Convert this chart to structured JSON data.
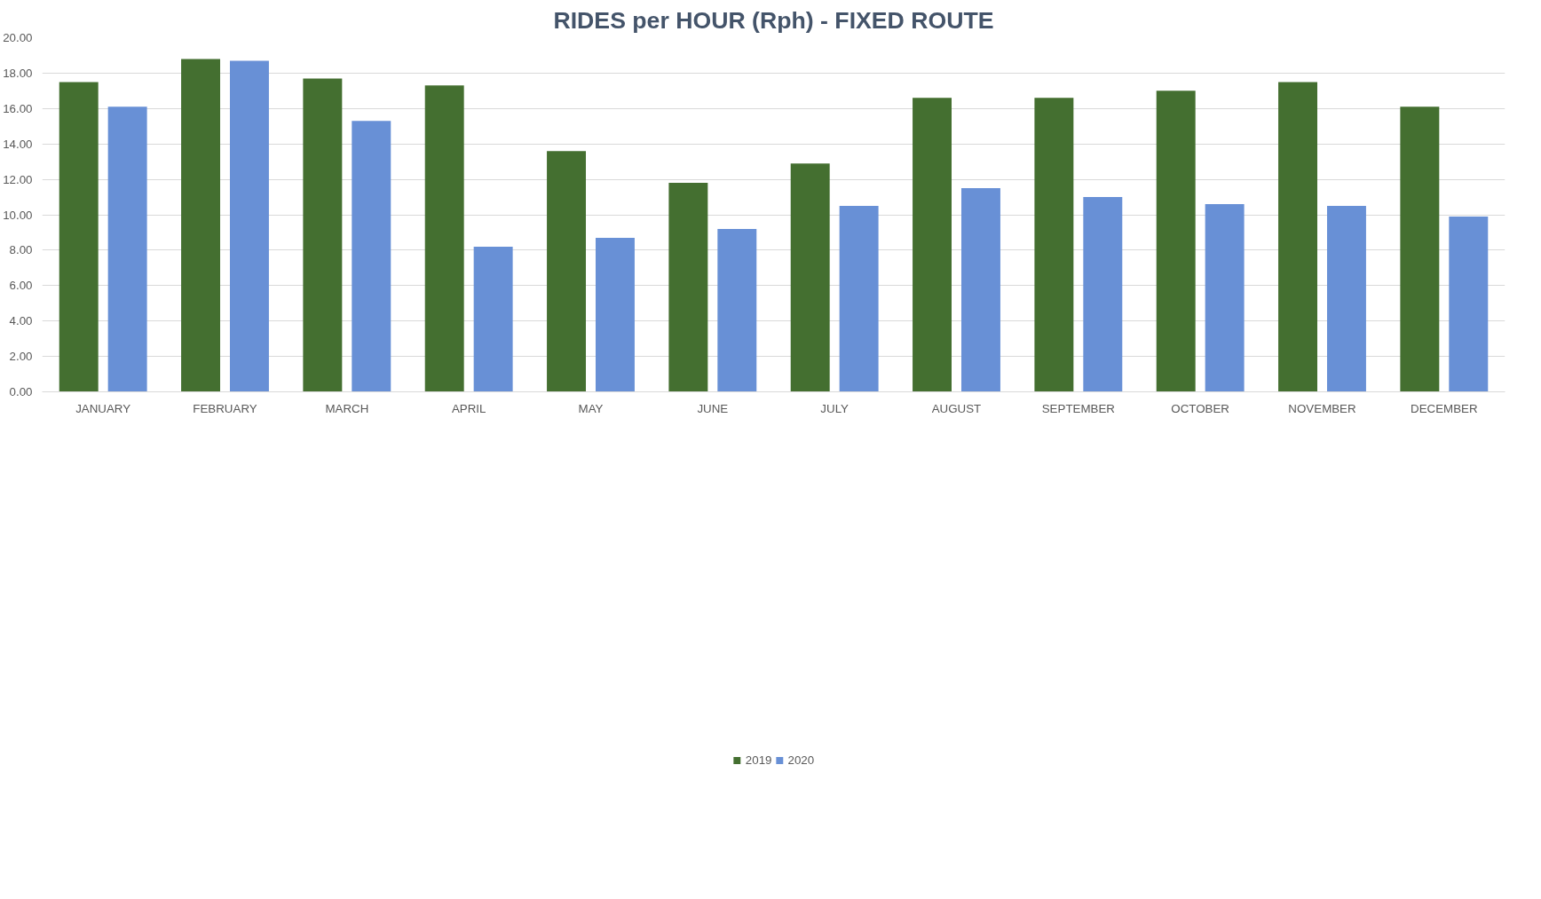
{
  "chart_data": {
    "type": "bar",
    "title": "RIDES per HOUR (Rph) - FIXED ROUTE",
    "categories": [
      "JANUARY",
      "FEBRUARY",
      "MARCH",
      "APRIL",
      "MAY",
      "JUNE",
      "JULY",
      "AUGUST",
      "SEPTEMBER",
      "OCTOBER",
      "NOVEMBER",
      "DECEMBER"
    ],
    "series": [
      {
        "name": "2019",
        "color": "#446f30",
        "values": [
          17.5,
          18.8,
          17.7,
          17.3,
          13.6,
          11.8,
          12.9,
          16.6,
          16.6,
          17.0,
          17.5,
          16.1
        ]
      },
      {
        "name": "2020",
        "color": "#6890d6",
        "values": [
          16.1,
          18.7,
          15.3,
          8.2,
          8.7,
          9.2,
          10.5,
          11.5,
          11.0,
          10.6,
          10.5,
          9.9
        ]
      }
    ],
    "ylim": [
      0,
      20
    ],
    "yticks": [
      {
        "value": 0,
        "label": "0.00"
      },
      {
        "value": 2,
        "label": "2.00"
      },
      {
        "value": 4,
        "label": "4.00"
      },
      {
        "value": 6,
        "label": "6.00"
      },
      {
        "value": 8,
        "label": "8.00"
      },
      {
        "value": 10,
        "label": "10.00"
      },
      {
        "value": 12,
        "label": "12.00"
      },
      {
        "value": 14,
        "label": "14.00"
      },
      {
        "value": 16,
        "label": "16.00"
      },
      {
        "value": 18,
        "label": "18.00"
      },
      {
        "value": 20,
        "label": "20.00"
      }
    ],
    "grid": "y",
    "legend": "bottom"
  }
}
